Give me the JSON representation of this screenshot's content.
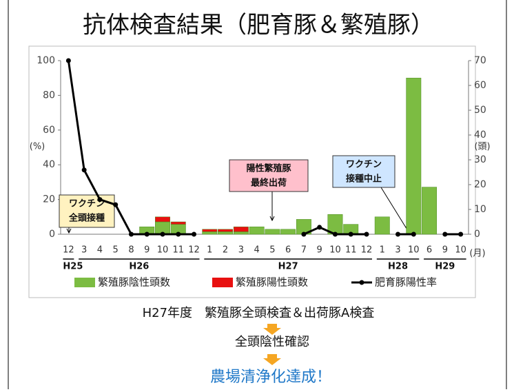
{
  "chart_data": {
    "type": "bar_line",
    "title": "抗体検査結果（肥育豚＆繁殖豚）",
    "y_label": "(%)",
    "y2_label": "(頭)",
    "x_unit": "(月)",
    "categories": [
      "12",
      "3",
      "4",
      "5",
      "8",
      "9",
      "10",
      "11",
      "12",
      "1",
      "2",
      "3",
      "4",
      "5",
      "6",
      "7",
      "9",
      "10",
      "11",
      "12",
      "1",
      "3",
      "10",
      "6",
      "9",
      "10"
    ],
    "groups": [
      {
        "label": "H25",
        "count": 1
      },
      {
        "label": "H26",
        "count": 8
      },
      {
        "label": "H27",
        "count": 11
      },
      {
        "label": "H28",
        "count": 3
      },
      {
        "label": "H29",
        "count": 3
      }
    ],
    "series": [
      {
        "name": "繁殖豚陰性頭数",
        "color": "#7cbc42",
        "kind": "bar",
        "axis": "y2",
        "values": [
          0,
          0,
          0,
          0,
          0,
          3,
          5,
          4,
          0,
          1,
          1,
          1,
          3,
          2,
          2,
          6,
          0,
          8,
          4,
          0,
          7,
          0,
          63,
          19,
          0,
          0
        ]
      },
      {
        "name": "繁殖豚陽性頭数",
        "color": "#e81010",
        "kind": "bar",
        "axis": "y2",
        "values": [
          0,
          0,
          0,
          0,
          0,
          0,
          2,
          1,
          0,
          1,
          1,
          2,
          0,
          0,
          0,
          0,
          0,
          0,
          0,
          0,
          0,
          0,
          0,
          0,
          0,
          0
        ]
      },
      {
        "name": "肥育豚陽性率",
        "color": "#000000",
        "kind": "line",
        "axis": "y",
        "values": [
          100,
          37,
          20,
          17,
          0,
          0,
          0,
          0,
          0,
          null,
          null,
          null,
          null,
          null,
          null,
          0,
          4,
          0,
          0,
          0,
          null,
          0,
          0,
          null,
          0,
          0
        ]
      }
    ],
    "ylim": [
      0,
      100
    ],
    "yticks": [
      0,
      20,
      40,
      60,
      80,
      100
    ],
    "y2lim": [
      0,
      70
    ],
    "y2ticks": [
      0,
      10,
      20,
      30,
      40,
      50,
      60,
      70
    ],
    "legend": "bottom",
    "annotations": [
      {
        "lines": [
          "ワクチン",
          "全頭接種"
        ],
        "color": "#fff2c0",
        "category": 0
      },
      {
        "lines": [
          "陽性繁殖豚",
          "最終出荷"
        ],
        "color": "#ffc0cc",
        "category": 13
      },
      {
        "lines": [
          "ワクチン",
          "接種中止"
        ],
        "color": "#cfe6ff",
        "category": 22
      }
    ]
  },
  "footer": {
    "line1": "H27年度　繁殖豚全頭検査＆出荷豚A検査",
    "line2": "全頭陰性確認",
    "line3": "農場清浄化達成！"
  }
}
